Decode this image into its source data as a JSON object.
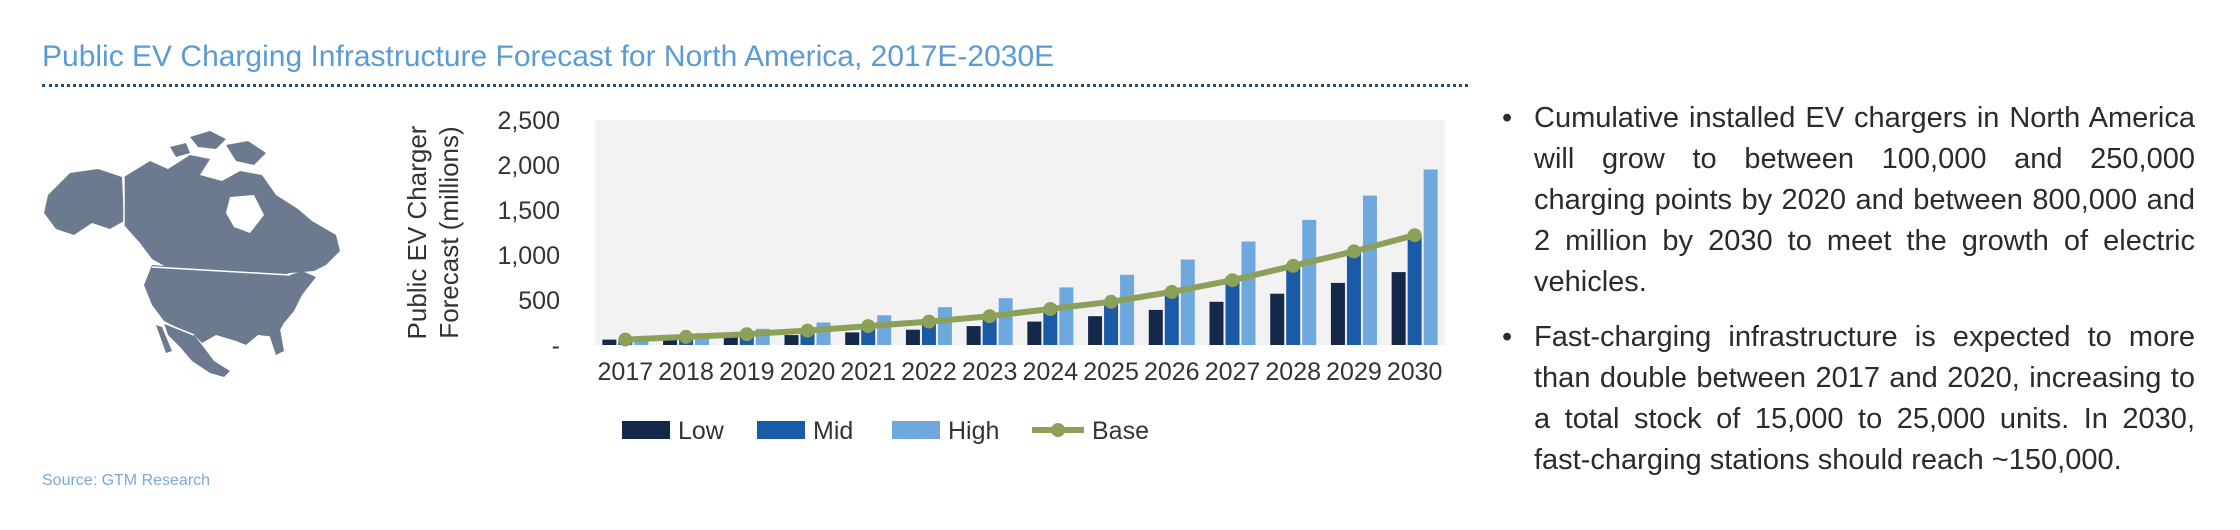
{
  "title": "Public EV Charging Infrastructure Forecast for North America, 2017E-2030E",
  "source": "Source: GTM Research",
  "colors": {
    "title": "#5b9bd5",
    "low": "#14294a",
    "mid": "#1b5aa6",
    "high": "#6fa8dc",
    "base": "#8da05a",
    "plot_bg": "#f2f2f2",
    "map": "#6b7a8f"
  },
  "icons": {
    "map": "north-america-map-icon"
  },
  "bullets": [
    {
      "text": "Cumulative installed EV chargers in North America will grow to between 100,000 and 250,000 charging points by 2020 and between 800,000 and 2 million by 2030 to meet the growth of electric vehicles."
    },
    {
      "text": "Fast-charging infrastructure is expected to more than double between 2017 and 2020, increasing to a total stock of 15,000 to 25,000 units. In 2030, fast-charging stations should reach ~150,000."
    }
  ],
  "chart_data": {
    "type": "bar",
    "ylabel": "Public EV Charger Forecast (millions)",
    "ylim": [
      0,
      2500
    ],
    "yticks": [
      {
        "value": 0,
        "label": "-"
      },
      {
        "value": 500,
        "label": "500"
      },
      {
        "value": 1000,
        "label": "1,000"
      },
      {
        "value": 1500,
        "label": "1,500"
      },
      {
        "value": 2000,
        "label": "2,000"
      },
      {
        "value": 2500,
        "label": "2,500"
      }
    ],
    "grid": false,
    "legend_position": "bottom",
    "categories": [
      "2017",
      "2018",
      "2019",
      "2020",
      "2021",
      "2022",
      "2023",
      "2024",
      "2025",
      "2026",
      "2027",
      "2028",
      "2029",
      "2030"
    ],
    "series": [
      {
        "name": "Low",
        "type": "bar",
        "values": [
          60,
          70,
          90,
          110,
          140,
          170,
          210,
          260,
          320,
          390,
          480,
          570,
          690,
          810
        ]
      },
      {
        "name": "Mid",
        "type": "bar",
        "values": [
          70,
          90,
          120,
          150,
          200,
          250,
          320,
          400,
          500,
          620,
          760,
          900,
          1060,
          1230
        ]
      },
      {
        "name": "High",
        "type": "bar",
        "values": [
          90,
          130,
          180,
          250,
          330,
          420,
          520,
          640,
          780,
          950,
          1150,
          1390,
          1660,
          1950
        ]
      },
      {
        "name": "Base",
        "type": "line",
        "values": [
          60,
          90,
          120,
          160,
          210,
          260,
          320,
          400,
          480,
          590,
          720,
          880,
          1040,
          1220
        ]
      }
    ]
  }
}
